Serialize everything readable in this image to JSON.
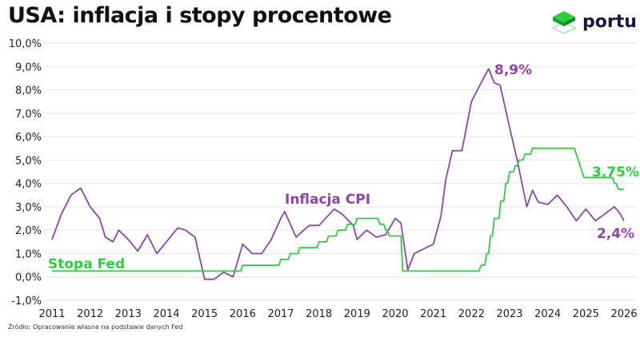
{
  "title": "USA: inflacja i stopy procentowe",
  "logo": {
    "text": "portu",
    "color": "#22c55e"
  },
  "source": "Źródło: Opracowanie własne na podstawie danych Fed",
  "chart_data": {
    "type": "line",
    "title": "USA: inflacja i stopy procentowe",
    "ylim": [
      -1,
      10
    ],
    "xlim": [
      2011,
      2026
    ],
    "yticks": [
      "-1,0%",
      "0,0%",
      "1,0%",
      "2,0%",
      "3,0%",
      "4,0%",
      "5,0%",
      "6,0%",
      "7,0%",
      "8,0%",
      "9,0%",
      "10,0%"
    ],
    "xticks": [
      "2011",
      "2012",
      "2013",
      "2014",
      "2015",
      "2016",
      "2017",
      "2018",
      "2019",
      "2020",
      "2021",
      "2022",
      "2023",
      "2024",
      "2025",
      "2026"
    ],
    "grid": true,
    "series": [
      {
        "name": "Inflacja CPI",
        "color": "#8e44ad",
        "x": [
          2011.0,
          2011.25,
          2011.5,
          2011.75,
          2012.0,
          2012.25,
          2012.4,
          2012.6,
          2012.75,
          2013.0,
          2013.25,
          2013.5,
          2013.75,
          2014.0,
          2014.3,
          2014.5,
          2014.75,
          2015.0,
          2015.25,
          2015.5,
          2015.75,
          2016.0,
          2016.25,
          2016.5,
          2016.75,
          2017.0,
          2017.1,
          2017.4,
          2017.6,
          2017.75,
          2018.0,
          2018.4,
          2018.6,
          2018.9,
          2019.0,
          2019.25,
          2019.5,
          2019.75,
          2020.0,
          2020.15,
          2020.33,
          2020.5,
          2020.75,
          2021.0,
          2021.2,
          2021.33,
          2021.5,
          2021.75,
          2022.0,
          2022.25,
          2022.45,
          2022.6,
          2022.75,
          2023.0,
          2023.2,
          2023.45,
          2023.6,
          2023.75,
          2024.0,
          2024.25,
          2024.5,
          2024.75,
          2025.0,
          2025.25,
          2025.5,
          2025.75,
          2025.9,
          2026.0
        ],
        "y": [
          1.6,
          2.7,
          3.5,
          3.8,
          3.0,
          2.5,
          1.7,
          1.5,
          2.0,
          1.6,
          1.1,
          1.8,
          1.0,
          1.5,
          2.1,
          2.0,
          1.7,
          -0.1,
          -0.1,
          0.2,
          0.0,
          1.4,
          1.0,
          1.0,
          1.6,
          2.5,
          2.8,
          1.7,
          2.0,
          2.2,
          2.2,
          2.9,
          2.7,
          2.2,
          1.6,
          2.0,
          1.7,
          1.8,
          2.5,
          2.3,
          0.3,
          1.0,
          1.2,
          1.4,
          2.6,
          4.2,
          5.4,
          5.4,
          7.5,
          8.3,
          8.9,
          8.3,
          8.2,
          6.4,
          5.0,
          3.0,
          3.7,
          3.2,
          3.1,
          3.5,
          3.0,
          2.4,
          2.9,
          2.4,
          2.7,
          3.0,
          2.7,
          2.4
        ]
      },
      {
        "name": "Stopa Fed",
        "color": "#2ecc40",
        "x": [
          2011.0,
          2015.95,
          2016.0,
          2016.95,
          2017.0,
          2017.2,
          2017.25,
          2017.45,
          2017.5,
          2017.95,
          2018.0,
          2018.2,
          2018.25,
          2018.45,
          2018.5,
          2018.7,
          2018.75,
          2018.95,
          2019.0,
          2019.55,
          2019.6,
          2019.7,
          2019.75,
          2019.8,
          2019.85,
          2020.15,
          2020.2,
          2022.2,
          2022.25,
          2022.35,
          2022.4,
          2022.45,
          2022.5,
          2022.55,
          2022.6,
          2022.72,
          2022.77,
          2022.85,
          2022.9,
          2022.95,
          2023.0,
          2023.1,
          2023.15,
          2023.2,
          2023.25,
          2023.35,
          2023.4,
          2023.55,
          2023.6,
          2024.7,
          2024.8,
          2024.95,
          2025.7,
          2025.75,
          2025.8,
          2025.85,
          2025.95,
          2026.0
        ],
        "y": [
          0.25,
          0.25,
          0.5,
          0.5,
          0.75,
          0.75,
          1.0,
          1.0,
          1.25,
          1.25,
          1.5,
          1.5,
          1.75,
          1.75,
          2.0,
          2.0,
          2.25,
          2.25,
          2.5,
          2.5,
          2.25,
          2.25,
          2.0,
          2.0,
          1.75,
          1.75,
          0.25,
          0.25,
          0.5,
          0.5,
          1.0,
          1.0,
          1.75,
          1.75,
          2.5,
          2.5,
          3.25,
          3.25,
          4.0,
          4.0,
          4.5,
          4.5,
          4.75,
          4.75,
          5.0,
          5.0,
          5.25,
          5.25,
          5.5,
          5.5,
          5.0,
          4.25,
          4.25,
          4.0,
          4.0,
          3.75,
          3.75,
          3.75
        ]
      }
    ],
    "annotations": [
      {
        "text": "8,9%",
        "series": "Inflacja CPI"
      },
      {
        "text": "Inflacja CPI",
        "series": "Inflacja CPI"
      },
      {
        "text": "2,4%",
        "series": "Inflacja CPI"
      },
      {
        "text": "3,75%",
        "series": "Stopa Fed"
      },
      {
        "text": "Stopa Fed",
        "series": "Stopa Fed"
      }
    ]
  }
}
